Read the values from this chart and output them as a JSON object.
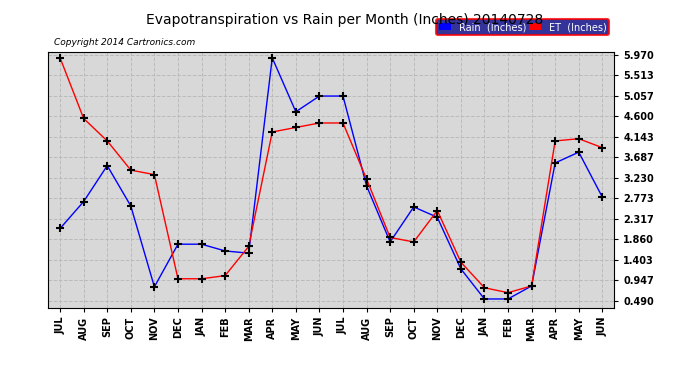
{
  "title": "Evapotranspiration vs Rain per Month (Inches) 20140728",
  "copyright": "Copyright 2014 Cartronics.com",
  "months": [
    "JUL",
    "AUG",
    "SEP",
    "OCT",
    "NOV",
    "DEC",
    "JAN",
    "FEB",
    "MAR",
    "APR",
    "MAY",
    "JUN",
    "JUL",
    "AUG",
    "SEP",
    "OCT",
    "NOV",
    "DEC",
    "JAN",
    "FEB",
    "MAR",
    "APR",
    "MAY",
    "JUN"
  ],
  "rain_values": [
    2.1,
    2.7,
    3.5,
    2.6,
    0.8,
    1.75,
    1.75,
    1.6,
    1.55,
    5.9,
    4.7,
    5.05,
    5.05,
    3.05,
    1.8,
    2.58,
    2.35,
    1.2,
    0.53,
    0.53,
    0.82,
    3.56,
    3.8,
    2.8
  ],
  "et_values": [
    5.9,
    4.55,
    4.05,
    3.4,
    3.3,
    0.98,
    0.98,
    1.05,
    1.7,
    4.25,
    4.35,
    4.45,
    4.45,
    3.2,
    1.9,
    1.8,
    2.5,
    1.35,
    0.78,
    0.67,
    0.82,
    4.05,
    4.1,
    3.9
  ],
  "rain_color": "#0000ff",
  "et_color": "#ff0000",
  "marker_color": "#000000",
  "background_color": "#ffffff",
  "plot_bg_color": "#d8d8d8",
  "grid_color": "#bbbbbb",
  "yticks": [
    0.49,
    0.947,
    1.403,
    1.86,
    2.317,
    2.773,
    3.23,
    3.687,
    4.143,
    4.6,
    5.057,
    5.513,
    5.97
  ],
  "ymin": 0.49,
  "ymax": 5.97,
  "title_fontsize": 11,
  "legend_rain_label": "Rain  (Inches)",
  "legend_et_label": "ET  (Inches)",
  "marker_size": 6,
  "linewidth": 1.0
}
